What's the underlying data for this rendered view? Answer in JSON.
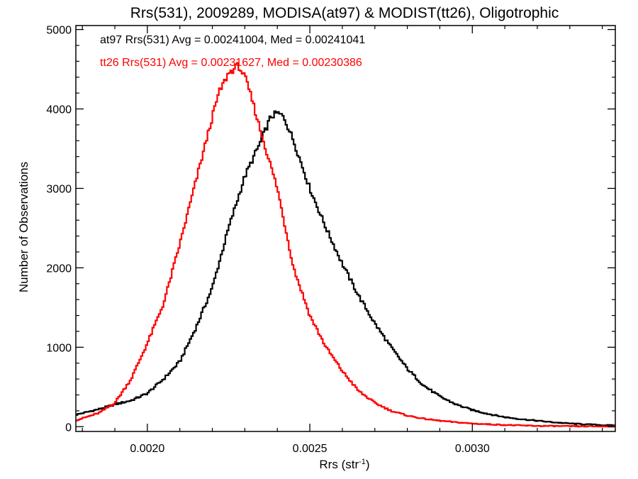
{
  "chart_data": {
    "type": "line",
    "title": "Rrs(531), 2009289, MODISA(at97) & MODIST(tt26), Oligotrophic",
    "xlabel": "Rrs (str",
    "xlabel_sup": "-1",
    "xlabel_close": ")",
    "ylabel": "Number of Observations",
    "xlim": [
      0.00178,
      0.00344
    ],
    "ylim": [
      -60,
      5050
    ],
    "x_ticks": [
      0.002,
      0.0025,
      0.003
    ],
    "x_tick_labels": [
      "0.0020",
      "0.0025",
      "0.0030"
    ],
    "y_ticks": [
      0,
      1000,
      2000,
      3000,
      4000,
      5000
    ],
    "y_tick_labels": [
      "0",
      "1000",
      "2000",
      "3000",
      "4000",
      "5000"
    ],
    "grid": false,
    "style": "histogram-step",
    "legend_placement": "top-left",
    "annotations": [
      {
        "text": "at97 Rrs(531) Avg = 0.00241004, Med = 0.00241041",
        "color": "#000000"
      },
      {
        "text": "tt26 Rrs(531) Avg = 0.00231627, Med = 0.00230386",
        "color": "#ff0000"
      }
    ],
    "series": [
      {
        "name": "at97",
        "color": "#000000",
        "x": [
          0.00178,
          0.00185,
          0.0019,
          0.00195,
          0.002,
          0.00205,
          0.0021,
          0.00215,
          0.0022,
          0.00225,
          0.0023,
          0.00235,
          0.00238,
          0.0024,
          0.00242,
          0.00245,
          0.0025,
          0.00255,
          0.0026,
          0.00265,
          0.0027,
          0.00275,
          0.0028,
          0.00285,
          0.0029,
          0.00295,
          0.003,
          0.00305,
          0.0031,
          0.00315,
          0.0032,
          0.00325,
          0.0033,
          0.00335,
          0.0034,
          0.00344
        ],
        "y": [
          150,
          220,
          280,
          330,
          420,
          600,
          820,
          1250,
          1750,
          2500,
          3150,
          3600,
          3900,
          3950,
          3900,
          3600,
          3000,
          2500,
          2050,
          1650,
          1300,
          1000,
          730,
          520,
          380,
          280,
          210,
          160,
          120,
          95,
          75,
          55,
          40,
          30,
          20,
          15
        ]
      },
      {
        "name": "tt26",
        "color": "#ff0000",
        "x": [
          0.00178,
          0.00185,
          0.0019,
          0.00195,
          0.002,
          0.00205,
          0.0021,
          0.00215,
          0.0022,
          0.00222,
          0.00225,
          0.00228,
          0.0023,
          0.00232,
          0.00235,
          0.0024,
          0.00245,
          0.0025,
          0.00255,
          0.0026,
          0.00265,
          0.0027,
          0.00275,
          0.0028,
          0.00285,
          0.0029,
          0.00295,
          0.003,
          0.00305,
          0.0031,
          0.00315,
          0.0032,
          0.00325,
          0.0033,
          0.0034,
          0.00344
        ],
        "y": [
          80,
          170,
          300,
          600,
          1050,
          1550,
          2300,
          3100,
          3900,
          4200,
          4450,
          4550,
          4400,
          4150,
          3700,
          3000,
          2000,
          1400,
          1000,
          700,
          450,
          300,
          200,
          140,
          100,
          75,
          55,
          40,
          30,
          22,
          15,
          10,
          8,
          5,
          3,
          2
        ]
      }
    ]
  }
}
